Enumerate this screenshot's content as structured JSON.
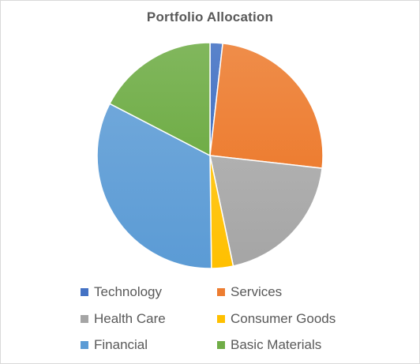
{
  "chart_data": {
    "type": "pie",
    "title": "Portfolio Allocation",
    "categories": [
      "Technology",
      "Services",
      "Health Care",
      "Consumer Goods",
      "Financial",
      "Basic Materials"
    ],
    "values": [
      1.8,
      25.0,
      19.9,
      3.1,
      32.8,
      17.4
    ],
    "colors": [
      "#4472C4",
      "#ED7D31",
      "#A5A5A5",
      "#FFC000",
      "#5B9BD5",
      "#70AD47"
    ],
    "legend_position": "bottom"
  }
}
